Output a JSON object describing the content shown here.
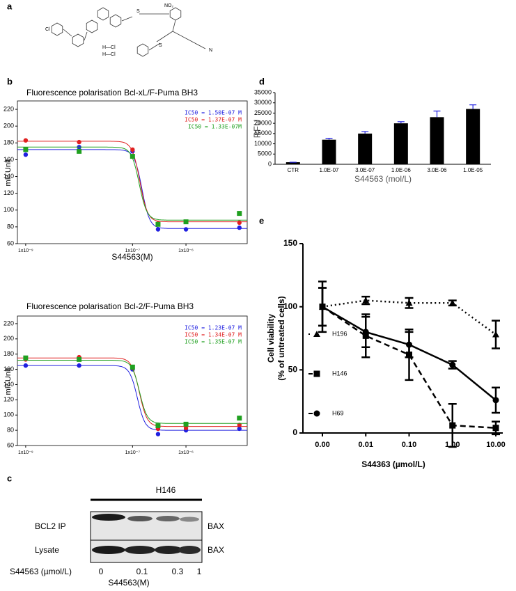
{
  "panel_labels": [
    "a",
    "b",
    "c",
    "d",
    "e"
  ],
  "structure": {
    "labels": [
      "Cl",
      "H—Cl",
      "H—Cl",
      "S",
      "NO₂",
      "S",
      "N"
    ]
  },
  "blot": {
    "cell_line": "H146",
    "rows": [
      {
        "label": "BCL2 IP",
        "protein": "BAX"
      },
      {
        "label": "Lysate",
        "protein": "BAX"
      }
    ],
    "dose_label": "S44563 (µmol/L)",
    "doses": [
      0,
      0.1,
      0.3,
      1
    ]
  },
  "chart_data": [
    {
      "type": "sigmoid",
      "title": "Fluorescence polarisation  Bcl-xL/F-Puma BH3",
      "x_label": "S44563(M)",
      "y_label": "mP Unit",
      "x_scale": "log",
      "xlim": [
        7e-10,
        1.4e-05
      ],
      "xticks": [
        {
          "value": 1e-09,
          "label": "1x10⁻⁹"
        },
        {
          "value": 1e-07,
          "label": "1x10⁻⁷"
        },
        {
          "value": 1e-06,
          "label": "1x10⁻⁶"
        }
      ],
      "ylim": [
        60,
        230
      ],
      "yticks": [
        60,
        80,
        100,
        120,
        140,
        160,
        180,
        200,
        220
      ],
      "x": [
        1e-09,
        1e-08,
        1e-07,
        3e-07,
        1e-06,
        1e-05
      ],
      "series": [
        {
          "name": "IC50 = 1.50E-07 M",
          "color": "#2020e0",
          "marker": "circle",
          "values": [
            166,
            175,
            170,
            77,
            77,
            79
          ],
          "top": 172,
          "bottom": 78,
          "ic50": 1.5e-07,
          "hill": 6
        },
        {
          "name": "IC50 = 1.37E-07 M",
          "color": "#e02020",
          "marker": "circle",
          "values": [
            183,
            181,
            172,
            84,
            86,
            85
          ],
          "top": 182,
          "bottom": 86,
          "ic50": 1.37e-07,
          "hill": 6
        },
        {
          "name": "IC50 = 1.33E-07M",
          "color": "#20a020",
          "marker": "square",
          "values": [
            172,
            170,
            164,
            83,
            86,
            96
          ],
          "top": 175,
          "bottom": 88,
          "ic50": 1.33e-07,
          "hill": 6
        }
      ]
    },
    {
      "type": "sigmoid",
      "title": "Fluorescence polarisation Bcl-2/F-Puma BH3",
      "x_label": "S44563(M)",
      "y_label": "mP Unit",
      "x_scale": "log",
      "xlim": [
        7e-10,
        1.4e-05
      ],
      "xticks": [
        {
          "value": 1e-09,
          "label": "1x10⁻⁹"
        },
        {
          "value": 1e-07,
          "label": "1x10⁻⁷"
        },
        {
          "value": 1e-06,
          "label": "1x10⁻⁶"
        }
      ],
      "ylim": [
        60,
        230
      ],
      "yticks": [
        60,
        80,
        100,
        120,
        140,
        160,
        180,
        200,
        220
      ],
      "x": [
        1e-09,
        1e-08,
        1e-07,
        3e-07,
        1e-06,
        1e-05
      ],
      "series": [
        {
          "name": "IC50 = 1.23E-07 M",
          "color": "#2020e0",
          "marker": "circle",
          "values": [
            165,
            165,
            160,
            75,
            80,
            82
          ],
          "top": 165,
          "bottom": 80,
          "ic50": 1.23e-07,
          "hill": 6
        },
        {
          "name": "IC50 = 1.34E-07 M",
          "color": "#e02020",
          "marker": "circle",
          "values": [
            173,
            176,
            162,
            82,
            83,
            87
          ],
          "top": 175,
          "bottom": 85,
          "ic50": 1.34e-07,
          "hill": 6
        },
        {
          "name": "IC50 = 1.35E-07 M",
          "color": "#20a020",
          "marker": "square",
          "values": [
            175,
            173,
            163,
            86,
            88,
            96
          ],
          "top": 172,
          "bottom": 89,
          "ic50": 1.35e-07,
          "hill": 6
        }
      ]
    },
    {
      "type": "bar",
      "y_label": "RFU",
      "x_label": "S44563 (mol/L)",
      "categories": [
        "CTR",
        "1.0E-07",
        "3.0E-07",
        "1.0E-06",
        "3.0E-06",
        "1.0E-05"
      ],
      "values": [
        1000,
        12000,
        15000,
        20000,
        23000,
        27000
      ],
      "errors": [
        0,
        700,
        1000,
        800,
        3000,
        2000
      ],
      "color": "#000000",
      "error_color": "#2020e0",
      "ylim": [
        0,
        35000
      ],
      "yticks": [
        0,
        5000,
        10000,
        15000,
        20000,
        25000,
        30000,
        35000
      ]
    },
    {
      "type": "line",
      "y_label": [
        "Cell viability",
        "(% of untreated cells)"
      ],
      "x_label": "S44363 (µmol/L)",
      "categories": [
        "0.00",
        "0.01",
        "0.10",
        "1.00",
        "10.00"
      ],
      "ylim": [
        0,
        150
      ],
      "yticks": [
        0,
        50,
        100,
        150
      ],
      "series": [
        {
          "name": "H196",
          "color": "#000000",
          "marker": "triangle",
          "dash": "dotted",
          "values": [
            100,
            105,
            103,
            103,
            78
          ],
          "errors": [
            15,
            3,
            4,
            2,
            11
          ]
        },
        {
          "name": "H146",
          "color": "#000000",
          "marker": "square",
          "dash": "dashed",
          "values": [
            100,
            77,
            62,
            6,
            4
          ],
          "errors": [
            20,
            17,
            20,
            17,
            5
          ]
        },
        {
          "name": "H69",
          "color": "#000000",
          "marker": "circle",
          "dash": "solid",
          "values": [
            100,
            80,
            70,
            54,
            26
          ],
          "errors": [
            15,
            12,
            10,
            3,
            10
          ]
        }
      ]
    }
  ]
}
